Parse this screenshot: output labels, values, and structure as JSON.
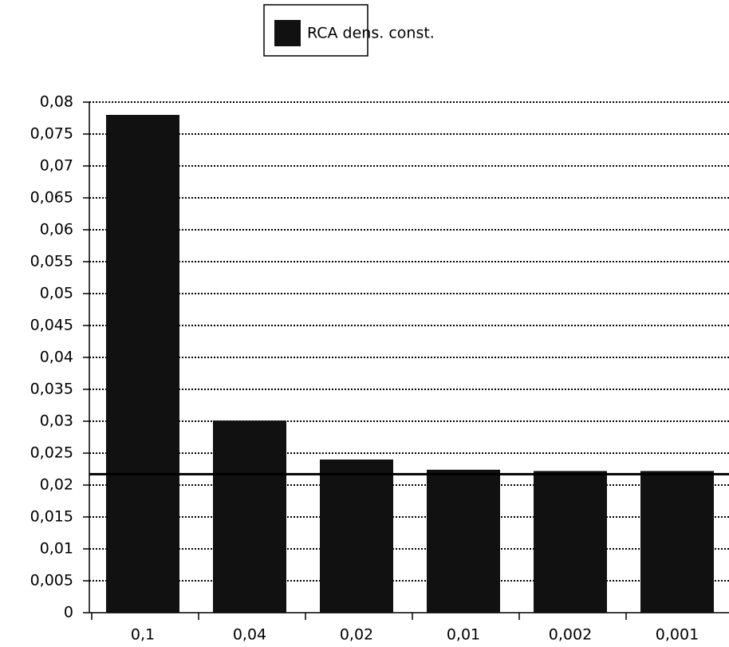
{
  "chart_data": {
    "type": "bar",
    "categories": [
      "0,1",
      "0,04",
      "0,02",
      "0,01",
      "0,002",
      "0,001"
    ],
    "series": [
      {
        "name": "RCA dens. const.",
        "color": "#111111",
        "values": [
          0.078,
          0.0301,
          0.024,
          0.0224,
          0.0222,
          0.0222
        ]
      }
    ],
    "hline": 0.0217,
    "ylim": [
      0,
      0.08
    ],
    "yticks": [
      0,
      {
        "value": 0.005,
        "label": "0,005"
      },
      {
        "value": 0.01,
        "label": "0,01"
      },
      {
        "value": 0.015,
        "label": "0,015"
      },
      {
        "value": 0.02,
        "label": "0,02"
      },
      {
        "value": 0.025,
        "label": "0,025"
      },
      {
        "value": 0.03,
        "label": "0,03"
      },
      {
        "value": 0.035,
        "label": "0,035"
      },
      {
        "value": 0.04,
        "label": "0,04"
      },
      {
        "value": 0.045,
        "label": "0,045"
      },
      {
        "value": 0.05,
        "label": "0,05"
      },
      {
        "value": 0.055,
        "label": "0,055"
      },
      {
        "value": 0.06,
        "label": "0,06"
      },
      {
        "value": 0.065,
        "label": "0,065"
      },
      {
        "value": 0.07,
        "label": "0,07"
      },
      {
        "value": 0.075,
        "label": "0,075"
      },
      {
        "value": 0.08,
        "label": "0,08"
      }
    ],
    "grid": true,
    "legend": "top"
  }
}
